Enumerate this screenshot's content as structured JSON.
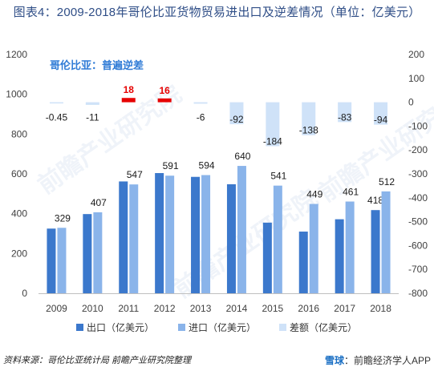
{
  "title": "图表4：2009-2018年哥伦比亚货物贸易进出口及逆差情况（单位：亿美元）",
  "annotation": "哥伦比亚：普遍逆差",
  "source_text": "资料来源：哥伦比亚统计局 前瞻产业研究院整理",
  "credit": {
    "brand": "雪球",
    "text": "：前瞻经济学人APP"
  },
  "watermark": "前瞻产业研究院",
  "colors": {
    "export": "#3b78cc",
    "import": "#8ab4ea",
    "balance": "#cfe2f8",
    "highlight": "#e60000"
  },
  "chart_data": {
    "type": "bar",
    "categories": [
      "2009",
      "2010",
      "2011",
      "2012",
      "2013",
      "2014",
      "2015",
      "2016",
      "2017",
      "2018"
    ],
    "series": [
      {
        "name": "出口（亿美元）",
        "axis": "left",
        "values": [
          325,
          398,
          562,
          604,
          585,
          548,
          355,
          310,
          372,
          418
        ],
        "labels": [
          "",
          "",
          "",
          "",
          "",
          "",
          "",
          "",
          "",
          "418"
        ]
      },
      {
        "name": "进口（亿美元）",
        "axis": "left",
        "values": [
          329,
          407,
          547,
          591,
          594,
          640,
          541,
          449,
          461,
          512
        ],
        "labels": [
          "329",
          "407",
          "547",
          "591",
          "594",
          "640",
          "541",
          "449",
          "461",
          "512"
        ]
      },
      {
        "name": "差额（亿美元）",
        "axis": "right",
        "values": [
          -0.45,
          -11,
          18,
          16,
          -6,
          -92,
          -184,
          -138,
          -83,
          -94
        ],
        "labels": [
          "-0.45",
          "-11",
          "18",
          "16",
          "-6",
          "-92",
          "-184",
          "-138",
          "-83",
          "-94"
        ]
      }
    ],
    "left_axis": {
      "ticks": [
        "0",
        "200",
        "400",
        "600",
        "800",
        "1000",
        "1200"
      ],
      "ylim": [
        0,
        1200
      ]
    },
    "right_axis": {
      "ticks": [
        "-800",
        "-700",
        "-600",
        "-500",
        "-400",
        "-300",
        "-200",
        "-100",
        "0",
        "100",
        "200"
      ],
      "ylim": [
        -800,
        200
      ]
    },
    "legend": [
      "出口（亿美元）",
      "进口（亿美元）",
      "差额（亿美元）"
    ],
    "grid": false
  }
}
